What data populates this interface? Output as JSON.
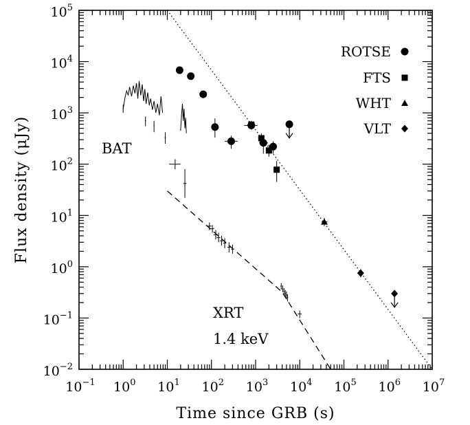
{
  "chart_data": {
    "type": "scatter",
    "title": "",
    "xlabel": "Time since GRB (s)",
    "ylabel": "Flux density (μJy)",
    "xscale": "log",
    "yscale": "log",
    "xlim": [
      0.1,
      10000000
    ],
    "ylim": [
      0.01,
      100000
    ],
    "x_tick_labels": [
      {
        "base": "10",
        "exp": "−1",
        "value": 0.1
      },
      {
        "base": "10",
        "exp": "0",
        "value": 1
      },
      {
        "base": "10",
        "exp": "1",
        "value": 10
      },
      {
        "base": "10",
        "exp": "2",
        "value": 100
      },
      {
        "base": "10",
        "exp": "3",
        "value": 1000
      },
      {
        "base": "10",
        "exp": "4",
        "value": 10000
      },
      {
        "base": "10",
        "exp": "5",
        "value": 100000
      },
      {
        "base": "10",
        "exp": "6",
        "value": 1000000
      },
      {
        "base": "10",
        "exp": "7",
        "value": 10000000
      }
    ],
    "y_tick_labels": [
      {
        "base": "10",
        "exp": "−2",
        "value": 0.01
      },
      {
        "base": "10",
        "exp": "−1",
        "value": 0.1
      },
      {
        "base": "10",
        "exp": "0",
        "value": 1
      },
      {
        "base": "10",
        "exp": "1",
        "value": 10
      },
      {
        "base": "10",
        "exp": "2",
        "value": 100
      },
      {
        "base": "10",
        "exp": "3",
        "value": 1000
      },
      {
        "base": "10",
        "exp": "4",
        "value": 10000
      },
      {
        "base": "10",
        "exp": "5",
        "value": 100000
      }
    ],
    "legend_position": "top-right",
    "legend": [
      {
        "label": "ROTSE",
        "marker": "circle"
      },
      {
        "label": "FTS",
        "marker": "square"
      },
      {
        "label": "WHT",
        "marker": "triangle"
      },
      {
        "label": "VLT",
        "marker": "diamond"
      }
    ],
    "annotations": {
      "bat": "BAT",
      "xrt_line1": "XRT",
      "xrt_line2": "1.4 keV"
    },
    "series": [
      {
        "name": "ROTSE",
        "marker": "circle",
        "points": [
          {
            "x": 19,
            "y": 6800,
            "xerr": [
              16,
              23
            ],
            "yerr": [
              6000,
              7800
            ]
          },
          {
            "x": 34,
            "y": 5200,
            "xerr": [
              29,
              40
            ],
            "yerr": [
              4500,
              6100
            ]
          },
          {
            "x": 65,
            "y": 2300,
            "xerr": [
              55,
              77
            ],
            "yerr": [
              1950,
              2700
            ]
          },
          {
            "x": 120,
            "y": 530,
            "xerr": [
              100,
              145
            ],
            "yerr": [
              330,
              780
            ]
          },
          {
            "x": 280,
            "y": 280,
            "xerr": [
              200,
              390
            ],
            "yerr": [
              200,
              360
            ]
          },
          {
            "x": 800,
            "y": 570,
            "xerr": [
              550,
              1100
            ],
            "yerr": [
              470,
              680
            ]
          },
          {
            "x": 1500,
            "y": 260,
            "xerr": [
              1200,
              1900
            ],
            "yerr": [
              160,
              370
            ]
          },
          {
            "x": 2500,
            "y": 220,
            "xerr": [
              2100,
              3000
            ],
            "yerr": [
              160,
              280
            ]
          }
        ],
        "upper_limits": [
          {
            "x": 5800,
            "y": 600
          }
        ]
      },
      {
        "name": "FTS",
        "marker": "square",
        "points": [
          {
            "x": 800,
            "y": 590,
            "xerr": [
              650,
              950
            ],
            "yerr": [
              500,
              700
            ]
          },
          {
            "x": 1350,
            "y": 320,
            "xerr": [
              1150,
              1550
            ],
            "yerr": [
              230,
              400
            ]
          },
          {
            "x": 2000,
            "y": 185,
            "xerr": [
              1750,
              2300
            ],
            "yerr": [
              140,
              240
            ]
          },
          {
            "x": 3000,
            "y": 78,
            "xerr": [
              2600,
              3300
            ],
            "yerr": [
              45,
              115
            ]
          }
        ],
        "upper_limits": []
      },
      {
        "name": "WHT",
        "marker": "triangle",
        "points": [
          {
            "x": 36000,
            "y": 7.5,
            "xerr": [
              31000,
              42000
            ],
            "yerr": [
              6.2,
              9
            ]
          }
        ],
        "upper_limits": []
      },
      {
        "name": "VLT",
        "marker": "diamond",
        "points": [
          {
            "x": 240000,
            "y": 0.75,
            "xerr": [
              200000,
              280000
            ],
            "yerr": [
              0.62,
              0.9
            ]
          }
        ],
        "upper_limits": [
          {
            "x": 1400000,
            "y": 0.3
          }
        ]
      },
      {
        "name": "BAT",
        "marker": "none",
        "light_curve": [
          [
            1.0,
            1200
          ],
          [
            1.1,
            2000
          ],
          [
            1.2,
            2700
          ],
          [
            1.3,
            2200
          ],
          [
            1.4,
            3200
          ],
          [
            1.55,
            2100
          ],
          [
            1.7,
            3400
          ],
          [
            1.85,
            2400
          ],
          [
            2.0,
            3800
          ],
          [
            2.15,
            1900
          ],
          [
            2.3,
            4200
          ],
          [
            2.5,
            2200
          ],
          [
            2.7,
            3600
          ],
          [
            2.9,
            1700
          ],
          [
            3.1,
            2900
          ],
          [
            3.3,
            1500
          ],
          [
            3.6,
            2500
          ],
          [
            3.9,
            1400
          ],
          [
            4.2,
            1900
          ],
          [
            4.6,
            1150
          ],
          [
            5.0,
            1700
          ],
          [
            5.5,
            1000
          ],
          [
            6.0,
            1500
          ],
          [
            6.6,
            900
          ],
          [
            7.2,
            2100
          ],
          [
            7.8,
            1000
          ]
        ],
        "light_curve_2": [
          [
            20,
            450
          ],
          [
            21,
            900
          ],
          [
            22,
            1500
          ],
          [
            23,
            700
          ],
          [
            24,
            1200
          ],
          [
            25,
            500
          ],
          [
            26,
            800
          ],
          [
            27,
            400
          ]
        ],
        "points": [
          {
            "x": 1.0,
            "y": 1200,
            "xerr": [
              0.98,
              1.02
            ],
            "yerr": [
              1000,
              1450
            ]
          },
          {
            "x": 3.2,
            "y": 700,
            "xerr": [
              3.1,
              3.3
            ],
            "yerr": [
              550,
              850
            ]
          },
          {
            "x": 5.0,
            "y": 550,
            "xerr": [
              4.9,
              5.1
            ],
            "yerr": [
              420,
              700
            ]
          },
          {
            "x": 9.0,
            "y": 330,
            "xerr": [
              8.7,
              9.3
            ],
            "yerr": [
              250,
              420
            ]
          },
          {
            "x": 15,
            "y": 100,
            "xerr": [
              11,
              20
            ],
            "yerr": [
              80,
              125
            ]
          },
          {
            "x": 25,
            "y": 42,
            "xerr": [
              23,
              27
            ],
            "yerr": [
              22,
              80
            ]
          }
        ]
      },
      {
        "name": "XRT",
        "marker": "none",
        "points": [
          {
            "x": 90,
            "y": 6.2,
            "xerr": [
              80,
              100
            ],
            "yerr": [
              5.2,
              7.3
            ]
          },
          {
            "x": 105,
            "y": 5.5,
            "xerr": [
              95,
              115
            ],
            "yerr": [
              4.6,
              6.5
            ]
          },
          {
            "x": 125,
            "y": 4.2,
            "xerr": [
              112,
              138
            ],
            "yerr": [
              3.4,
              5.2
            ]
          },
          {
            "x": 145,
            "y": 3.7,
            "xerr": [
              132,
              158
            ],
            "yerr": [
              3.0,
              4.6
            ]
          },
          {
            "x": 170,
            "y": 3.2,
            "xerr": [
              155,
              185
            ],
            "yerr": [
              2.6,
              4.0
            ]
          },
          {
            "x": 200,
            "y": 2.9,
            "xerr": [
              185,
              215
            ],
            "yerr": [
              2.3,
              3.6
            ]
          },
          {
            "x": 250,
            "y": 2.4,
            "xerr": [
              230,
              270
            ],
            "yerr": [
              1.9,
              3.0
            ]
          },
          {
            "x": 300,
            "y": 2.2,
            "xerr": [
              280,
              320
            ],
            "yerr": [
              1.8,
              2.7
            ]
          },
          {
            "x": 3800,
            "y": 0.42,
            "xerr": [
              3650,
              3950
            ],
            "yerr": [
              0.36,
              0.48
            ]
          },
          {
            "x": 4100,
            "y": 0.37,
            "xerr": [
              3950,
              4250
            ],
            "yerr": [
              0.32,
              0.43
            ]
          },
          {
            "x": 4400,
            "y": 0.33,
            "xerr": [
              4250,
              4550
            ],
            "yerr": [
              0.28,
              0.38
            ]
          },
          {
            "x": 4700,
            "y": 0.3,
            "xerr": [
              4550,
              4850
            ],
            "yerr": [
              0.25,
              0.35
            ]
          },
          {
            "x": 5000,
            "y": 0.28,
            "xerr": [
              4850,
              5150
            ],
            "yerr": [
              0.23,
              0.33
            ]
          },
          {
            "x": 5300,
            "y": 0.25,
            "xerr": [
              5150,
              5450
            ],
            "yerr": [
              0.21,
              0.29
            ]
          },
          {
            "x": 10000,
            "y": 0.12,
            "xerr": [
              9000,
              11000
            ],
            "yerr": [
              0.1,
              0.14
            ]
          }
        ]
      }
    ],
    "fits": [
      {
        "name": "optical power-law",
        "style": "dotted",
        "points": [
          [
            10,
            100000
          ],
          [
            10000000,
            0.01
          ]
        ]
      },
      {
        "name": "XRT broken power-law",
        "style": "dashed",
        "points": [
          [
            10,
            30
          ],
          [
            4000,
            0.32
          ],
          [
            50000,
            0.01
          ]
        ]
      }
    ]
  }
}
